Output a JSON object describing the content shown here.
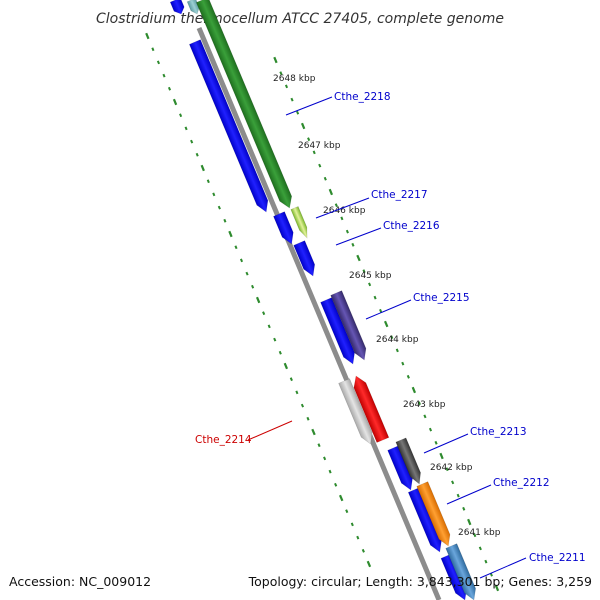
{
  "title": "Clostridium thermocellum ATCC 27405, complete genome",
  "accession": "Accession: NC_009012",
  "topology": "Topology: circular; Length: 3,843,301 bp; Genes: 3,259",
  "colors": {
    "backbone": "#8c8c8c",
    "tick": "#2e8b2e",
    "leader": "#0000cc",
    "leader_highlight": "#cc0000"
  },
  "kbp_labels": [
    "2648 kbp",
    "2647 kbp",
    "2646 kbp",
    "2645 kbp",
    "2644 kbp",
    "2643 kbp",
    "2642 kbp",
    "2641 kbp"
  ],
  "genes": [
    {
      "name": "Cthe_2218",
      "color": "#2a8a2a",
      "strand": "outer"
    },
    {
      "name": "Cthe_2217",
      "color": "#b7d96a",
      "strand": "outer"
    },
    {
      "name": "Cthe_2216",
      "color": "#0000ff",
      "strand": "inner"
    },
    {
      "name": "Cthe_2215",
      "color": "#4b3d8c",
      "strand": "outer"
    },
    {
      "name": "Cthe_2214",
      "color": "#ff0000",
      "strand": "outer"
    },
    {
      "name": "Cthe_2213",
      "color": "#555555",
      "strand": "outer"
    },
    {
      "name": "Cthe_2212",
      "color": "#ff8c00",
      "strand": "outer"
    },
    {
      "name": "Cthe_2211",
      "color": "#4682b4",
      "strand": "outer"
    }
  ]
}
